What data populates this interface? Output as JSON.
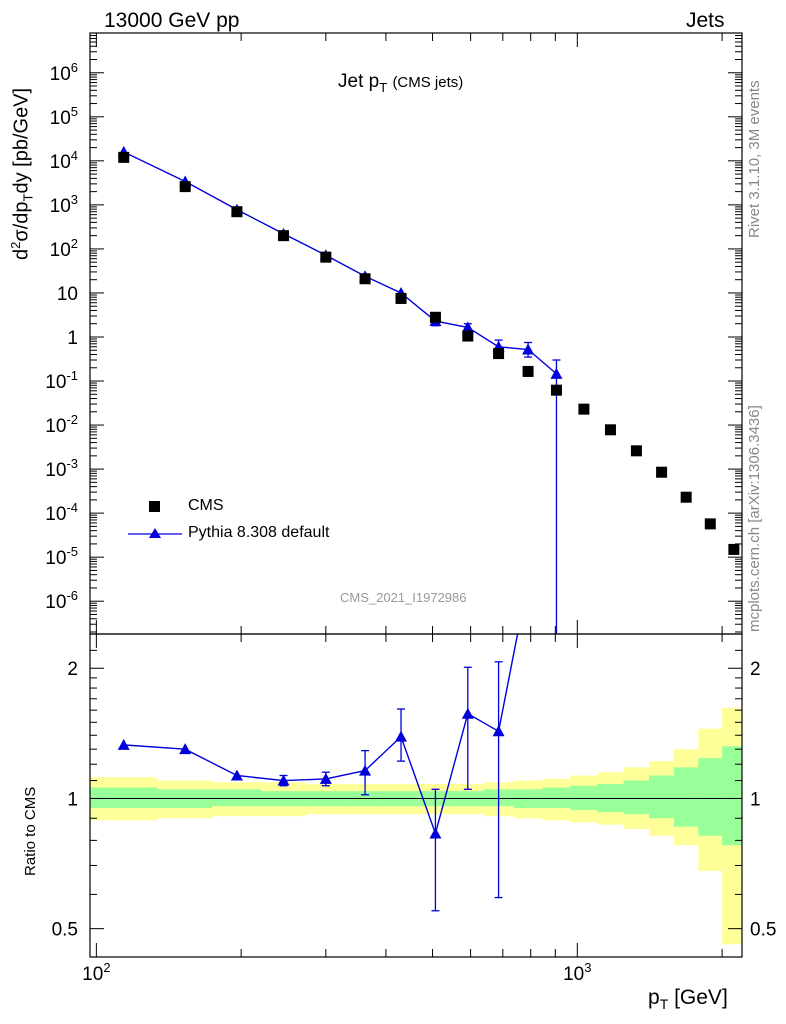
{
  "header": {
    "energy_label": "13000 GeV pp",
    "category_label": "Jets"
  },
  "side": {
    "version": "Rivet 3.1.10,  3M events",
    "source": "mcplots.cern.ch [arXiv:1306.3436]"
  },
  "colors": {
    "data": "#000000",
    "mc": "#0000dd",
    "band_inner": "#99ff99",
    "band_outer": "#ffff99",
    "frame": "#000000",
    "ref_text": "#999999"
  },
  "chart_data": [
    {
      "type": "scatter",
      "panel": "main",
      "title": "Jet p_T (CMS jets)",
      "title_main": "Jet p",
      "title_sub": "T",
      "title_suffix": "(CMS jets)",
      "ylabel": "d²σ/dp_T dy [pb/GeV]",
      "xlabel": "p_T [GeV]",
      "x_scale": "log",
      "y_scale": "log",
      "xlim": [
        97,
        2200
      ],
      "ylim": [
        1.8e-07,
        8000000.0
      ],
      "reference": "CMS_2021_I1972986",
      "legend_position": "bottom-left",
      "x_ticklabels": [
        {
          "value": 100,
          "base": "10",
          "exp": "2"
        },
        {
          "value": 1000,
          "base": "10",
          "exp": "3"
        }
      ],
      "y_ticklabels": [
        {
          "value": 1000000.0,
          "base": "10",
          "exp": "6"
        },
        {
          "value": 100000.0,
          "base": "10",
          "exp": "5"
        },
        {
          "value": 10000.0,
          "base": "10",
          "exp": "4"
        },
        {
          "value": 1000.0,
          "base": "10",
          "exp": "3"
        },
        {
          "value": 100.0,
          "base": "10",
          "exp": "2"
        },
        {
          "value": 10,
          "base": "10",
          "exp": ""
        },
        {
          "value": 1,
          "base": "1",
          "exp": ""
        },
        {
          "value": 0.1,
          "base": "10",
          "exp": "-1"
        },
        {
          "value": 0.01,
          "base": "10",
          "exp": "-2"
        },
        {
          "value": 0.001,
          "base": "10",
          "exp": "-3"
        },
        {
          "value": 0.0001,
          "base": "10",
          "exp": "-4"
        },
        {
          "value": 1e-05,
          "base": "10",
          "exp": "-5"
        },
        {
          "value": 1e-06,
          "base": "10",
          "exp": "-6"
        }
      ],
      "series": [
        {
          "name": "CMS",
          "marker": "square",
          "x": [
            114,
            153,
            196,
            245,
            300,
            362,
            430,
            507,
            592,
            686,
            790,
            905,
            1032,
            1172,
            1327,
            1497,
            1684,
            1890,
            2116
          ],
          "y": [
            12000,
            2600,
            700,
            200,
            65,
            21,
            7.5,
            2.8,
            1.05,
            0.42,
            0.165,
            0.062,
            0.023,
            0.0078,
            0.0026,
            0.00085,
            0.00023,
            5.7e-05,
            1.5e-05
          ]
        },
        {
          "name": "Pythia 8.308 default",
          "marker": "triangle",
          "x": [
            114,
            153,
            196,
            245,
            300,
            362,
            430,
            507,
            592,
            686,
            790,
            905
          ],
          "y": [
            16000,
            3400,
            780,
            220,
            72,
            24,
            10,
            2.3,
            1.65,
            0.6,
            0.52,
            0.145
          ],
          "y_low": [
            16000,
            3400,
            780,
            220,
            72,
            24,
            10,
            1.8,
            1.35,
            0.35,
            0.35,
            1e-09
          ],
          "y_high": [
            16000,
            3400,
            780,
            220,
            72,
            24,
            10,
            2.7,
            2.0,
            0.85,
            0.75,
            0.3
          ]
        }
      ]
    },
    {
      "type": "line",
      "panel": "ratio",
      "ylabel": "Ratio to CMS",
      "x_scale": "log",
      "y_scale": "log",
      "xlim": [
        97,
        2200
      ],
      "ylim": [
        0.43,
        2.4
      ],
      "y_ticklabels": [
        {
          "value": 0.5,
          "text": "0.5"
        },
        {
          "value": 1,
          "text": "1"
        },
        {
          "value": 2,
          "text": "2"
        }
      ],
      "band_edges": [
        97,
        134,
        174,
        220,
        272,
        330,
        395,
        467,
        548,
        638,
        737,
        846,
        967,
        1101,
        1248,
        1410,
        1588,
        1784,
        2000,
        2200
      ],
      "band_outer_low": [
        0.89,
        0.9,
        0.91,
        0.91,
        0.92,
        0.92,
        0.92,
        0.92,
        0.92,
        0.91,
        0.9,
        0.89,
        0.88,
        0.87,
        0.85,
        0.82,
        0.78,
        0.68,
        0.46
      ],
      "band_outer_high": [
        1.12,
        1.1,
        1.09,
        1.09,
        1.08,
        1.08,
        1.08,
        1.08,
        1.08,
        1.09,
        1.1,
        1.11,
        1.13,
        1.15,
        1.18,
        1.22,
        1.3,
        1.45,
        1.62
      ],
      "band_inner_low": [
        0.95,
        0.95,
        0.96,
        0.96,
        0.96,
        0.96,
        0.96,
        0.96,
        0.96,
        0.96,
        0.95,
        0.95,
        0.94,
        0.93,
        0.92,
        0.9,
        0.86,
        0.82,
        0.78
      ],
      "band_inner_high": [
        1.06,
        1.05,
        1.05,
        1.04,
        1.04,
        1.04,
        1.04,
        1.04,
        1.04,
        1.05,
        1.05,
        1.06,
        1.07,
        1.08,
        1.1,
        1.13,
        1.18,
        1.24,
        1.32
      ],
      "series": [
        {
          "name": "Pythia 8.308 default",
          "x": [
            114,
            153,
            196,
            245,
            300,
            362,
            430,
            507,
            592,
            686,
            790
          ],
          "y": [
            1.33,
            1.3,
            1.13,
            1.1,
            1.11,
            1.16,
            1.39,
            0.83,
            1.57,
            1.43,
            3.2
          ],
          "y_low": [
            1.33,
            1.3,
            1.13,
            1.07,
            1.07,
            1.02,
            1.22,
            0.55,
            1.05,
            0.59,
            3.2
          ],
          "y_high": [
            1.33,
            1.3,
            1.13,
            1.13,
            1.15,
            1.29,
            1.61,
            1.05,
            2.01,
            2.07,
            3.2
          ]
        }
      ]
    }
  ]
}
